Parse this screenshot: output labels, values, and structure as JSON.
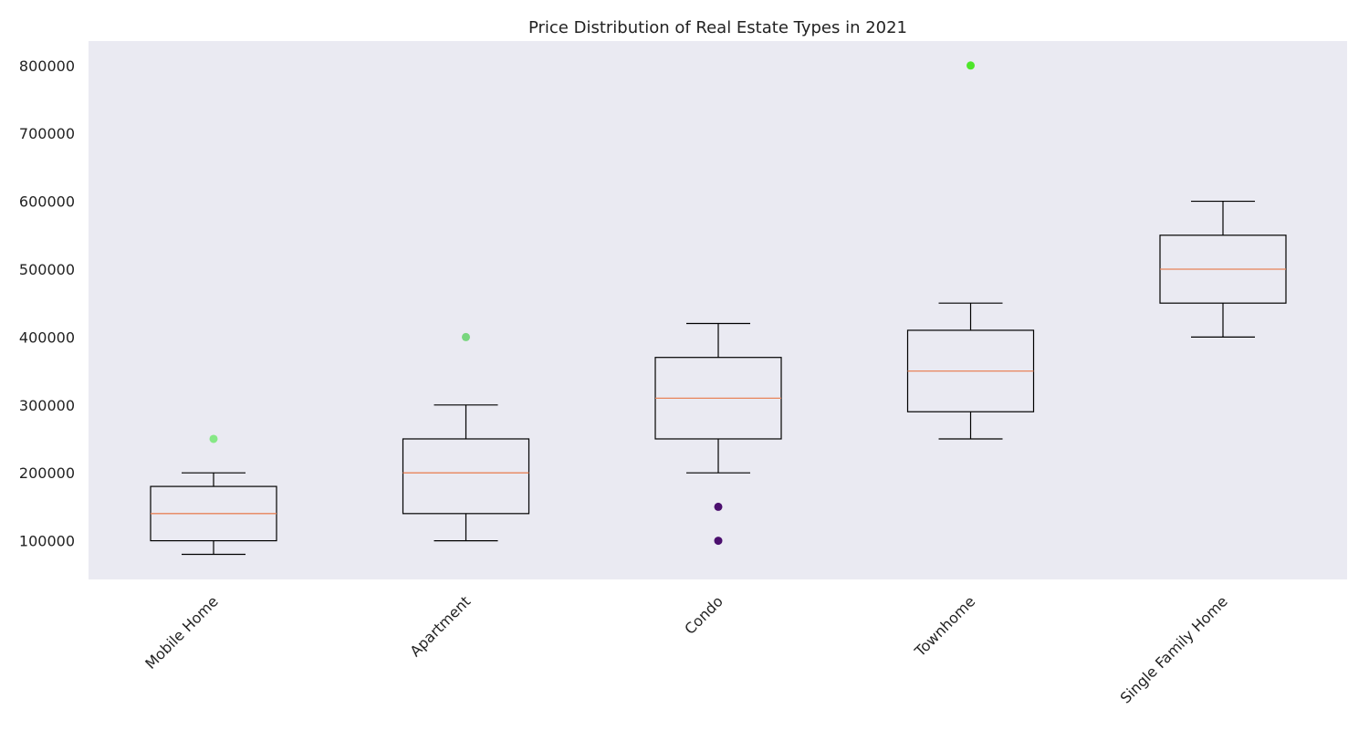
{
  "chart_data": {
    "type": "boxplot",
    "title": "Price Distribution of Real Estate Types in 2021",
    "xlabel": "",
    "ylabel": "",
    "ylim": [
      43000,
      836000
    ],
    "yticks": [
      100000,
      200000,
      300000,
      400000,
      500000,
      600000,
      700000,
      800000
    ],
    "grid": false,
    "colors": {
      "plot_background": "#eaeaf2",
      "box": "#000000",
      "median": "#e8845a"
    },
    "categories": [
      "Mobile Home",
      "Apartment",
      "Condo",
      "Townhome",
      "Single Family Home"
    ],
    "boxes": [
      {
        "category": "Mobile Home",
        "whisker_low": 80000,
        "q1": 100000,
        "median": 140000,
        "q3": 180000,
        "whisker_high": 200000,
        "outliers": [
          {
            "value": 250000,
            "color": "#86e886"
          }
        ]
      },
      {
        "category": "Apartment",
        "whisker_low": 100000,
        "q1": 140000,
        "median": 200000,
        "q3": 250000,
        "whisker_high": 300000,
        "outliers": [
          {
            "value": 400000,
            "color": "#78d67e"
          }
        ]
      },
      {
        "category": "Condo",
        "whisker_low": 200000,
        "q1": 250000,
        "median": 310000,
        "q3": 370000,
        "whisker_high": 420000,
        "outliers": [
          {
            "value": 150000,
            "color": "#4b0f6e"
          },
          {
            "value": 100000,
            "color": "#4b0f6e"
          }
        ]
      },
      {
        "category": "Townhome",
        "whisker_low": 250000,
        "q1": 290000,
        "median": 350000,
        "q3": 410000,
        "whisker_high": 450000,
        "outliers": [
          {
            "value": 800000,
            "color": "#4ee62a"
          }
        ]
      },
      {
        "category": "Single Family Home",
        "whisker_low": 400000,
        "q1": 450000,
        "median": 500000,
        "q3": 550000,
        "whisker_high": 600000,
        "outliers": []
      }
    ]
  }
}
